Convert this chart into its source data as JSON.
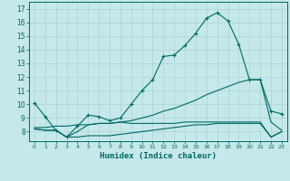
{
  "xlabel": "Humidex (Indice chaleur)",
  "background_color": "#c5e8e8",
  "grid_color": "#aed4d4",
  "line_color": "#006868",
  "xlim": [
    -0.5,
    23.5
  ],
  "ylim": [
    7.3,
    17.5
  ],
  "yticks": [
    8,
    9,
    10,
    11,
    12,
    13,
    14,
    15,
    16,
    17
  ],
  "xticks": [
    0,
    1,
    2,
    3,
    4,
    5,
    6,
    7,
    8,
    9,
    10,
    11,
    12,
    13,
    14,
    15,
    16,
    17,
    18,
    19,
    20,
    21,
    22,
    23
  ],
  "line1_x": [
    0,
    1,
    2,
    3,
    4,
    5,
    6,
    7,
    8,
    9,
    10,
    11,
    12,
    13,
    14,
    15,
    16,
    17,
    18,
    19,
    20,
    21,
    22,
    23
  ],
  "line1_y": [
    10.1,
    9.1,
    8.1,
    7.6,
    8.4,
    9.2,
    9.1,
    8.8,
    9.0,
    10.0,
    11.0,
    11.8,
    13.5,
    13.6,
    14.3,
    15.2,
    16.3,
    16.7,
    16.1,
    14.4,
    11.8,
    11.8,
    9.5,
    9.3
  ],
  "line2_x": [
    0,
    1,
    2,
    3,
    4,
    5,
    6,
    7,
    8,
    9,
    10,
    11,
    12,
    13,
    14,
    15,
    16,
    17,
    18,
    19,
    20,
    21,
    22,
    23
  ],
  "line2_y": [
    8.2,
    8.1,
    8.1,
    7.6,
    7.6,
    7.7,
    7.7,
    7.7,
    7.8,
    7.9,
    8.0,
    8.1,
    8.2,
    8.3,
    8.4,
    8.5,
    8.5,
    8.6,
    8.6,
    8.6,
    8.6,
    8.6,
    7.6,
    8.0
  ],
  "line3_x": [
    0,
    1,
    2,
    3,
    4,
    5,
    6,
    7,
    8,
    9,
    10,
    11,
    12,
    13,
    14,
    15,
    16,
    17,
    18,
    19,
    20,
    21,
    22,
    23
  ],
  "line3_y": [
    8.3,
    8.3,
    8.4,
    8.4,
    8.5,
    8.5,
    8.6,
    8.6,
    8.7,
    8.8,
    9.0,
    9.2,
    9.5,
    9.7,
    10.0,
    10.3,
    10.7,
    11.0,
    11.3,
    11.6,
    11.8,
    11.8,
    8.7,
    8.1
  ],
  "line4_x": [
    0,
    1,
    2,
    3,
    4,
    5,
    6,
    7,
    8,
    9,
    10,
    11,
    12,
    13,
    14,
    15,
    16,
    17,
    18,
    19,
    20,
    21,
    22,
    23
  ],
  "line4_y": [
    8.2,
    8.1,
    8.1,
    7.6,
    8.0,
    8.5,
    8.6,
    8.6,
    8.7,
    8.6,
    8.6,
    8.6,
    8.6,
    8.6,
    8.7,
    8.7,
    8.7,
    8.7,
    8.7,
    8.7,
    8.7,
    8.7,
    7.6,
    8.0
  ]
}
